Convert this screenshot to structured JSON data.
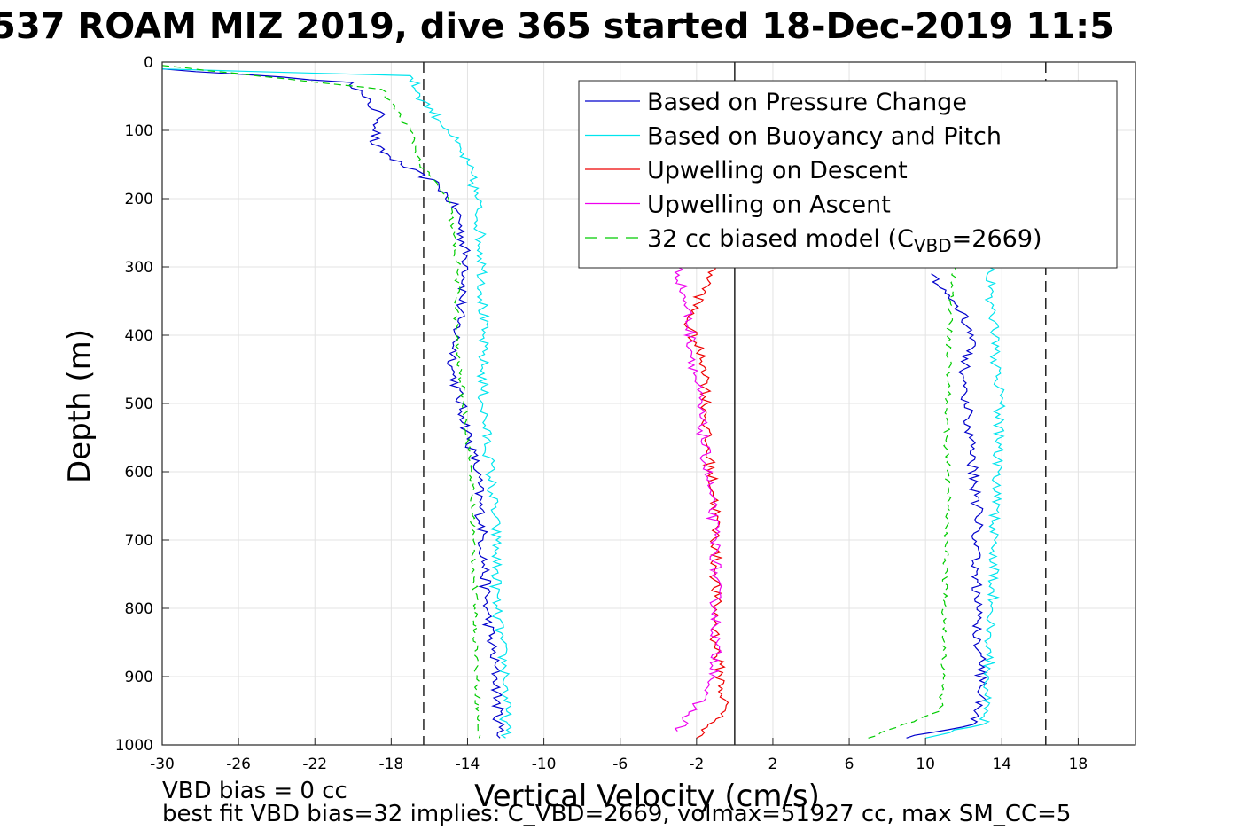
{
  "title": "537 ROAM MIZ 2019, dive 365 started 18-Dec-2019 11:5",
  "notes": {
    "line1": "VBD bias = 0 cc",
    "line2": "best fit VBD bias=32 implies: C_VBD=2669, volmax=51927 cc, max SM_CC=5"
  },
  "chart_data": {
    "type": "line",
    "title": "537 ROAM MIZ 2019, dive 365 started 18-Dec-2019 11:5",
    "xlabel": "Vertical Velocity (cm/s)",
    "ylabel": "Depth (m)",
    "xlim": [
      -30,
      21
    ],
    "ylim": [
      0,
      1000
    ],
    "y_reversed": true,
    "grid": true,
    "legend_position": "top-right",
    "x_ticks": [
      -30,
      -26,
      -22,
      -18,
      -14,
      -10,
      -6,
      -2,
      2,
      6,
      10,
      14,
      18
    ],
    "y_ticks": [
      0,
      100,
      200,
      300,
      400,
      500,
      600,
      700,
      800,
      900,
      1000
    ],
    "reference_lines": [
      {
        "x": -16.3,
        "style": "dashed",
        "color": "#000000"
      },
      {
        "x": 0,
        "style": "solid",
        "color": "#000000"
      },
      {
        "x": 16.3,
        "style": "dashed",
        "color": "#000000"
      }
    ],
    "series": [
      {
        "name": "Based on Pressure Change",
        "color": "#0000cc",
        "style": "solid",
        "descent": [
          [
            -30,
            10
          ],
          [
            -20,
            30
          ],
          [
            -19.5,
            50
          ],
          [
            -18.5,
            80
          ],
          [
            -19,
            120
          ],
          [
            -17.5,
            150
          ],
          [
            -15.5,
            180
          ],
          [
            -14.5,
            220
          ],
          [
            -14,
            300
          ],
          [
            -14.5,
            380
          ],
          [
            -14.8,
            450
          ],
          [
            -14.2,
            520
          ],
          [
            -13.5,
            600
          ],
          [
            -13.2,
            700
          ],
          [
            -13,
            800
          ],
          [
            -12.5,
            900
          ],
          [
            -12.3,
            990
          ]
        ],
        "ascent": [
          [
            9,
            990
          ],
          [
            12.5,
            970
          ],
          [
            13,
            930
          ],
          [
            12.8,
            850
          ],
          [
            12.7,
            750
          ],
          [
            12.7,
            650
          ],
          [
            12.3,
            550
          ],
          [
            12,
            450
          ],
          [
            12.5,
            400
          ],
          [
            11.5,
            350
          ],
          [
            10.3,
            310
          ]
        ]
      },
      {
        "name": "Based on Buoyancy and Pitch",
        "color": "#00e5ee",
        "style": "solid",
        "descent": [
          [
            -30,
            10
          ],
          [
            -17,
            20
          ],
          [
            -16.5,
            50
          ],
          [
            -15,
            100
          ],
          [
            -14,
            150
          ],
          [
            -13.5,
            200
          ],
          [
            -13.2,
            300
          ],
          [
            -13.2,
            400
          ],
          [
            -13.2,
            500
          ],
          [
            -12.8,
            600
          ],
          [
            -12.5,
            700
          ],
          [
            -12.5,
            800
          ],
          [
            -12,
            900
          ],
          [
            -12,
            990
          ]
        ],
        "ascent": [
          [
            10,
            990
          ],
          [
            13,
            970
          ],
          [
            13.3,
            900
          ],
          [
            13.5,
            800
          ],
          [
            13.6,
            700
          ],
          [
            13.8,
            600
          ],
          [
            13.9,
            500
          ],
          [
            13.6,
            400
          ],
          [
            13.3,
            300
          ]
        ]
      },
      {
        "name": "Upwelling on Descent",
        "color": "#ee0000",
        "style": "solid",
        "profile": [
          [
            -1,
            300
          ],
          [
            -2.5,
            380
          ],
          [
            -1.5,
            450
          ],
          [
            -1.5,
            550
          ],
          [
            -1,
            650
          ],
          [
            -1,
            750
          ],
          [
            -1,
            850
          ],
          [
            -0.5,
            950
          ],
          [
            -2,
            990
          ]
        ]
      },
      {
        "name": "Upwelling on Ascent",
        "color": "#ee00ee",
        "style": "solid",
        "profile": [
          [
            -3,
            300
          ],
          [
            -2.5,
            360
          ],
          [
            -1,
            700
          ],
          [
            -1,
            800
          ],
          [
            -1,
            900
          ],
          [
            -3,
            980
          ]
        ]
      },
      {
        "name": "32 cc biased model (C_VBD=2669)",
        "color": "#00cc00",
        "style": "dashed",
        "descent": [
          [
            -30,
            5
          ],
          [
            -18.5,
            40
          ],
          [
            -17,
            100
          ],
          [
            -16.5,
            150
          ],
          [
            -15,
            200
          ],
          [
            -14.5,
            300
          ],
          [
            -14.6,
            400
          ],
          [
            -14.2,
            500
          ],
          [
            -13.8,
            600
          ],
          [
            -13.7,
            700
          ],
          [
            -13.6,
            800
          ],
          [
            -13.5,
            900
          ],
          [
            -13.4,
            990
          ]
        ],
        "ascent": [
          [
            7,
            990
          ],
          [
            10.8,
            950
          ],
          [
            11,
            850
          ],
          [
            11,
            750
          ],
          [
            11.2,
            650
          ],
          [
            11.1,
            550
          ],
          [
            11.2,
            450
          ],
          [
            11.3,
            350
          ],
          [
            11.5,
            300
          ]
        ]
      }
    ],
    "legend": {
      "entries": [
        "Based on Pressure Change",
        "Based on Buoyancy and Pitch",
        "Upwelling on Descent",
        "Upwelling on Ascent"
      ],
      "model_prefix": "32 cc biased model (C",
      "model_sub": "VBD",
      "model_suffix": "=2669)"
    }
  }
}
